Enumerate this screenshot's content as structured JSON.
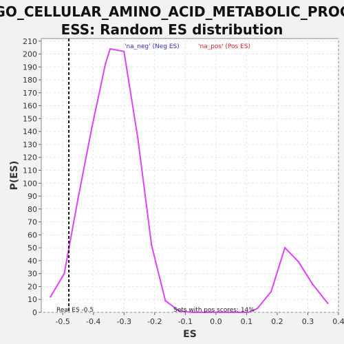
{
  "title_lines": [
    "GO_CELLULAR_AMINO_ACID_METABOLIC_PROC",
    "ESS: Random ES distribution"
  ],
  "chart_data": {
    "type": "line",
    "title": "GO_CELLULAR_AMINO_ACID_METABOLIC_PROCESS: Random ES distribution",
    "xlabel": "ES",
    "ylabel": "P(ES)",
    "xlim": [
      -0.57,
      0.4
    ],
    "ylim": [
      0,
      212
    ],
    "x_ticks": [
      -0.5,
      -0.4,
      -0.3,
      -0.2,
      -0.1,
      0.0,
      0.1,
      0.2,
      0.3,
      0.4
    ],
    "x_tick_labels": [
      "-0.5",
      "-0.4",
      "-0.3",
      "-0.2",
      "-0.1",
      "0.0",
      "0.1",
      "0.2",
      "0.3",
      "0.4"
    ],
    "y_ticks": [
      0,
      10,
      20,
      30,
      40,
      50,
      60,
      70,
      80,
      90,
      100,
      110,
      120,
      130,
      140,
      150,
      160,
      170,
      180,
      190,
      200,
      210
    ],
    "grid": true,
    "legend_position": "top-center",
    "legend": [
      {
        "label": "'na_neg' (Neg ES)",
        "color": "#3030c8"
      },
      {
        "label": "'na_pos' (Pos ES)",
        "color": "#e02020"
      }
    ],
    "series": [
      {
        "color": "#e040fb",
        "x": [
          -0.54,
          -0.495,
          -0.45,
          -0.405,
          -0.36,
          -0.345,
          -0.3,
          -0.255,
          -0.21,
          -0.165,
          -0.12,
          -0.075,
          -0.03,
          0.015,
          0.06,
          0.105,
          0.135,
          0.18,
          0.225,
          0.27,
          0.315,
          0.365
        ],
        "y": [
          12,
          30,
          88,
          143,
          193,
          204,
          202,
          135,
          52,
          9,
          1,
          0,
          0,
          0,
          0,
          0,
          3,
          16,
          50,
          39,
          22,
          7
        ]
      }
    ],
    "reference_line": {
      "x": -0.48,
      "label": "Real ES -0.5"
    },
    "annotation": "Sets with pos scores: 14%"
  }
}
